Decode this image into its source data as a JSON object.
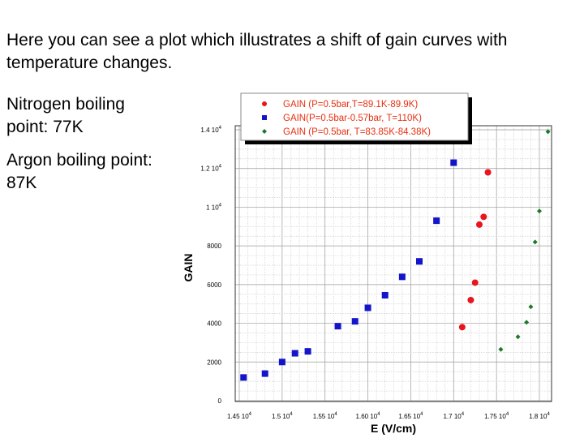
{
  "slide": {
    "intro": "Here you can see a plot which illustrates a shift of gain curves with temperature changes.",
    "note_nitrogen": "Nitrogen boiling point: 77K",
    "note_argon": "Argon boiling point: 87K"
  },
  "chart_data": {
    "type": "scatter",
    "xlabel": "E (V/cm)",
    "ylabel": "GAIN",
    "xlim": [
      14500,
      18150
    ],
    "ylim": [
      0,
      14000
    ],
    "grid": true,
    "legend_position": "top",
    "x_ticks": [
      {
        "value": 14500,
        "mant": "1.45 10",
        "exp": "4"
      },
      {
        "value": 15000,
        "mant": "1.5 10",
        "exp": "4"
      },
      {
        "value": 15500,
        "mant": "1.55 10",
        "exp": "4"
      },
      {
        "value": 16000,
        "mant": "1.60 10",
        "exp": "4"
      },
      {
        "value": 16500,
        "mant": "1.65 10",
        "exp": "4"
      },
      {
        "value": 17000,
        "mant": "1.7 10",
        "exp": "4"
      },
      {
        "value": 17500,
        "mant": "1.75 10",
        "exp": "4"
      },
      {
        "value": 18000,
        "mant": "1.8 10",
        "exp": "4"
      }
    ],
    "y_ticks": [
      {
        "value": 0,
        "mant": "0",
        "exp": ""
      },
      {
        "value": 2000,
        "mant": "2000",
        "exp": ""
      },
      {
        "value": 4000,
        "mant": "4000",
        "exp": ""
      },
      {
        "value": 6000,
        "mant": "6000",
        "exp": ""
      },
      {
        "value": 8000,
        "mant": "8000",
        "exp": ""
      },
      {
        "value": 10000,
        "mant": "1 10",
        "exp": "4"
      },
      {
        "value": 12000,
        "mant": "1.2 10",
        "exp": "4"
      },
      {
        "value": 14000,
        "mant": "1.4 10",
        "exp": "4"
      }
    ],
    "series": [
      {
        "name": "GAIN (P=0.5bar,T=89.1K-89.9K)",
        "marker": "circle",
        "color": "#e8141e",
        "points": [
          [
            17100,
            3800
          ],
          [
            17200,
            5200
          ],
          [
            17250,
            6100
          ],
          [
            17300,
            9100
          ],
          [
            17350,
            9500
          ],
          [
            17400,
            11800
          ]
        ]
      },
      {
        "name": "GAIN(P=0.5bar-0.57bar, T=110K)",
        "marker": "square",
        "color": "#1414c8",
        "points": [
          [
            14550,
            1200
          ],
          [
            14800,
            1400
          ],
          [
            15000,
            2000
          ],
          [
            15150,
            2450
          ],
          [
            15300,
            2550
          ],
          [
            15650,
            3850
          ],
          [
            15850,
            4100
          ],
          [
            16000,
            4800
          ],
          [
            16200,
            5450
          ],
          [
            16400,
            6400
          ],
          [
            16600,
            7200
          ],
          [
            16800,
            9300
          ],
          [
            17000,
            12300
          ]
        ]
      },
      {
        "name": "GAIN (P=0.5bar, T=83.85K-84.38K)",
        "marker": "diamond",
        "color": "#1a7a2a",
        "points": [
          [
            17550,
            2650
          ],
          [
            17750,
            3300
          ],
          [
            17850,
            4050
          ],
          [
            17900,
            4850
          ],
          [
            17950,
            8200
          ],
          [
            18000,
            9800
          ],
          [
            18100,
            13900
          ]
        ]
      }
    ]
  }
}
